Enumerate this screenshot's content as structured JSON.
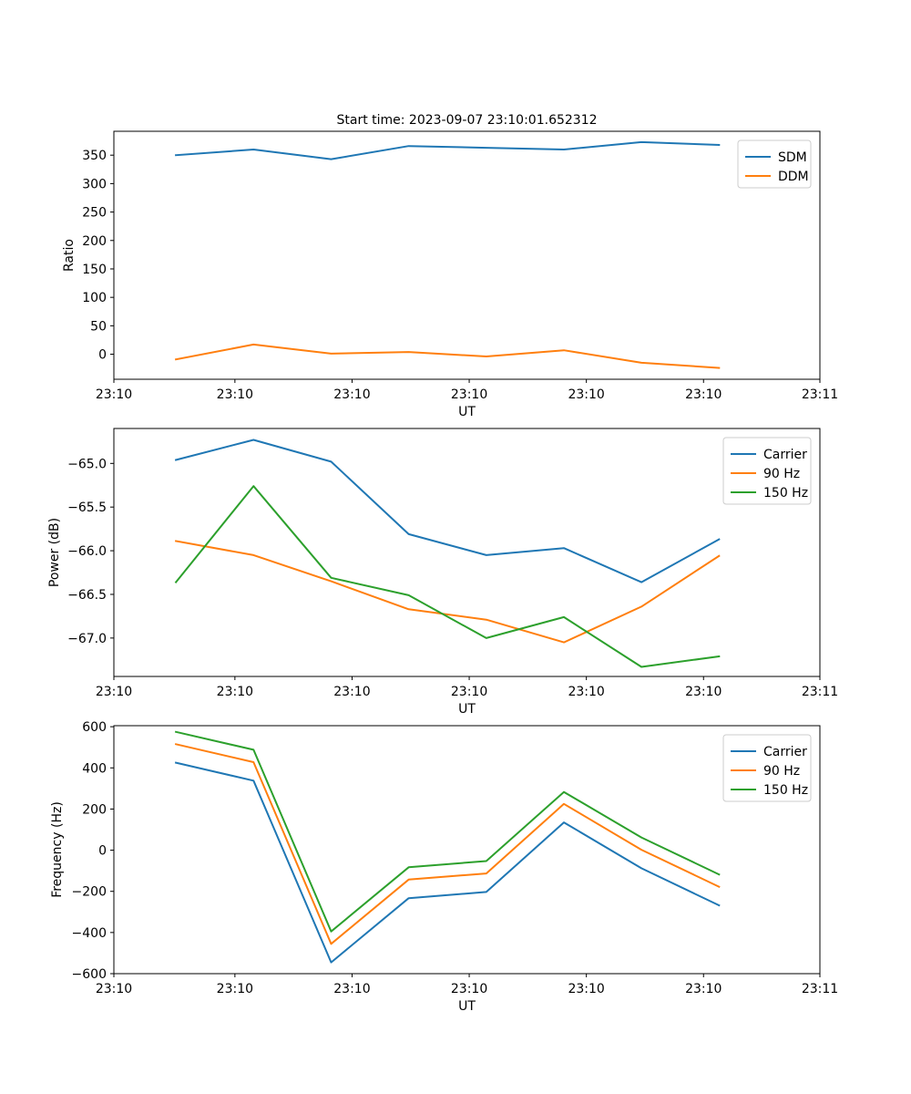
{
  "chart_data": [
    {
      "type": "line",
      "title": "Start time: 2023-09-07 23:10:01.652312",
      "xlabel": "UT",
      "ylabel": "Ratio",
      "x": [
        1,
        2,
        3,
        4,
        5,
        6,
        7,
        8
      ],
      "xlim": [
        0.2,
        9.3
      ],
      "x_ticks": [
        0.2,
        1.76,
        3.27,
        4.78,
        6.29,
        7.8,
        9.3
      ],
      "x_tick_labels": [
        "23:10",
        "23:10",
        "23:10",
        "23:10",
        "23:10",
        "23:10",
        "23:11"
      ],
      "ylim": [
        -44,
        392
      ],
      "y_ticks": [
        0,
        50,
        100,
        150,
        200,
        250,
        300,
        350
      ],
      "series": [
        {
          "name": "SDM",
          "color": "#1f77b4",
          "values": [
            350,
            360,
            343,
            366,
            363,
            360,
            373,
            368
          ]
        },
        {
          "name": "DDM",
          "color": "#ff7f0e",
          "values": [
            -9,
            17,
            1,
            4,
            -4,
            7,
            -15,
            -24
          ]
        }
      ],
      "legend": "top-right"
    },
    {
      "type": "line",
      "title": "",
      "xlabel": "UT",
      "ylabel": "Power (dB)",
      "x": [
        1,
        2,
        3,
        4,
        5,
        6,
        7,
        8
      ],
      "xlim": [
        0.2,
        9.3
      ],
      "x_ticks": [
        0.2,
        1.76,
        3.27,
        4.78,
        6.29,
        7.8,
        9.3
      ],
      "x_tick_labels": [
        "23:10",
        "23:10",
        "23:10",
        "23:10",
        "23:10",
        "23:10",
        "23:11"
      ],
      "ylim": [
        -67.44,
        -64.6
      ],
      "y_ticks": [
        -65.0,
        -65.5,
        -66.0,
        -66.5,
        -67.0
      ],
      "y_tick_labels": [
        "−65.0",
        "−65.5",
        "−66.0",
        "−66.5",
        "−67.0"
      ],
      "series": [
        {
          "name": "Carrier",
          "color": "#1f77b4",
          "values": [
            -64.96,
            -64.73,
            -64.98,
            -65.81,
            -66.05,
            -65.97,
            -66.36,
            -65.87
          ]
        },
        {
          "name": "90 Hz",
          "color": "#ff7f0e",
          "values": [
            -65.89,
            -66.05,
            -66.35,
            -66.67,
            -66.79,
            -67.05,
            -66.64,
            -66.06
          ]
        },
        {
          "name": "150 Hz",
          "color": "#2ca02c",
          "values": [
            -66.36,
            -65.26,
            -66.31,
            -66.51,
            -67.0,
            -66.76,
            -67.33,
            -67.21
          ]
        }
      ],
      "legend": "top-right"
    },
    {
      "type": "line",
      "title": "",
      "xlabel": "UT",
      "ylabel": "Frequency (Hz)",
      "x": [
        1,
        2,
        3,
        4,
        5,
        6,
        7,
        8
      ],
      "xlim": [
        0.2,
        9.3
      ],
      "x_ticks": [
        0.2,
        1.76,
        3.27,
        4.78,
        6.29,
        7.8,
        9.3
      ],
      "x_tick_labels": [
        "23:10",
        "23:10",
        "23:10",
        "23:10",
        "23:10",
        "23:10",
        "23:11"
      ],
      "ylim": [
        -600,
        605
      ],
      "y_ticks": [
        600,
        400,
        200,
        0,
        -200,
        -400,
        -600
      ],
      "y_tick_labels": [
        "600",
        "400",
        "200",
        "0",
        "−200",
        "−400",
        "−600"
      ],
      "series": [
        {
          "name": "Carrier",
          "color": "#1f77b4",
          "values": [
            425,
            338,
            -545,
            -233,
            -203,
            135,
            -88,
            -268
          ]
        },
        {
          "name": "90 Hz",
          "color": "#ff7f0e",
          "values": [
            515,
            428,
            -455,
            -143,
            -113,
            225,
            2,
            -178
          ]
        },
        {
          "name": "150 Hz",
          "color": "#2ca02c",
          "values": [
            575,
            488,
            -395,
            -83,
            -53,
            283,
            62,
            -118
          ]
        }
      ],
      "legend": "top-right"
    }
  ]
}
